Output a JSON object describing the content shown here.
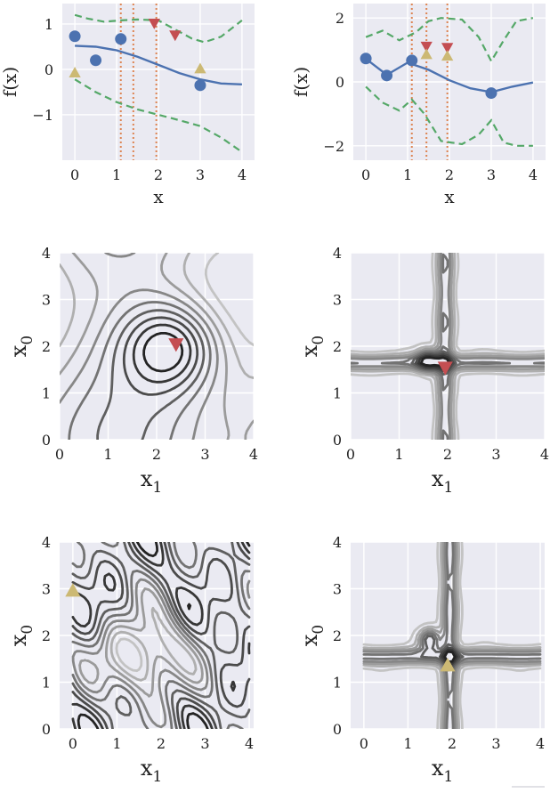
{
  "colors": {
    "panel_bg": "#eaeaf2",
    "grid": "#ffffff",
    "mean_line": "#4c72b0",
    "observed": "#4c72b0",
    "bound": "#55a868",
    "proposal_red": "#c44e52",
    "proposal_gold": "#ccb974",
    "vline": "#dd8452"
  },
  "chart_data": [
    {
      "type": "line",
      "xlabel": "x",
      "ylabel": "f(x)",
      "xlim": [
        -0.3,
        4.3
      ],
      "ylim": [
        -2.0,
        1.45
      ],
      "xticks": [
        "0",
        "1",
        "2",
        "3",
        "4"
      ],
      "yticks": [
        "1",
        "0",
        "−1"
      ],
      "ytick_values": [
        1,
        0,
        -1
      ],
      "grid": true,
      "series": [
        {
          "role": "mean",
          "x": [
            0,
            0.5,
            1,
            1.5,
            2,
            2.5,
            3,
            3.5,
            4
          ],
          "y": [
            0.52,
            0.5,
            0.42,
            0.28,
            0.1,
            -0.08,
            -0.22,
            -0.31,
            -0.33
          ]
        },
        {
          "role": "upper-bound",
          "x": [
            0,
            0.3,
            0.7,
            1.1,
            1.5,
            2,
            2.4,
            2.8,
            3.1,
            3.5,
            4
          ],
          "y": [
            1.2,
            1.12,
            1.05,
            1.08,
            1.1,
            1.08,
            0.88,
            0.68,
            0.6,
            0.72,
            1.08
          ]
        },
        {
          "role": "lower-bound",
          "x": [
            0,
            0.5,
            1,
            1.5,
            2,
            2.5,
            3,
            3.5,
            4
          ],
          "y": [
            -0.22,
            -0.5,
            -0.72,
            -0.88,
            -1.0,
            -1.12,
            -1.25,
            -1.5,
            -1.82
          ]
        },
        {
          "role": "observations",
          "x": [
            0,
            0.5,
            1.1,
            3.0
          ],
          "y": [
            0.73,
            0.2,
            0.67,
            -0.35
          ]
        },
        {
          "role": "proposal-red",
          "x": [
            1.9,
            2.4
          ],
          "y": [
            1.02,
            0.76
          ]
        },
        {
          "role": "proposal-gold",
          "x": [
            0.0,
            3.0
          ],
          "y": [
            -0.08,
            0.01
          ]
        }
      ],
      "vlines": [
        1.1,
        1.4,
        1.95
      ]
    },
    {
      "type": "line",
      "xlabel": "x",
      "ylabel": "f(x)",
      "xlim": [
        -0.3,
        4.3
      ],
      "ylim": [
        -2.45,
        2.45
      ],
      "xticks": [
        "0",
        "1",
        "2",
        "3",
        "4"
      ],
      "yticks": [
        "2",
        "0",
        "−2"
      ],
      "ytick_values": [
        2,
        0,
        -2
      ],
      "grid": true,
      "series": [
        {
          "role": "mean",
          "x": [
            0,
            0.5,
            1,
            1.5,
            2,
            2.5,
            3,
            3.5,
            4
          ],
          "y": [
            0.72,
            0.22,
            0.6,
            0.38,
            0.05,
            -0.2,
            -0.32,
            -0.15,
            -0.02
          ]
        },
        {
          "role": "upper-bound",
          "x": [
            0,
            0.4,
            0.8,
            1.2,
            1.5,
            1.8,
            2.3,
            2.7,
            3.0,
            3.3,
            3.6,
            4
          ],
          "y": [
            1.4,
            1.6,
            1.3,
            1.55,
            1.9,
            2.0,
            1.95,
            1.4,
            0.65,
            1.3,
            1.9,
            2.0
          ]
        },
        {
          "role": "lower-bound",
          "x": [
            0,
            0.4,
            0.8,
            1.1,
            1.4,
            1.8,
            2.3,
            2.7,
            3.0,
            3.3,
            3.6,
            4
          ],
          "y": [
            -0.15,
            -0.65,
            -0.9,
            -0.55,
            -1.0,
            -1.85,
            -1.95,
            -1.65,
            -1.2,
            -1.9,
            -2.0,
            -2.0
          ]
        },
        {
          "role": "observations",
          "x": [
            0,
            0.5,
            1.1,
            3.0
          ],
          "y": [
            0.73,
            0.2,
            0.67,
            -0.35
          ]
        },
        {
          "role": "proposal-red",
          "x": [
            1.45,
            1.95
          ],
          "y": [
            1.12,
            1.08
          ]
        },
        {
          "role": "proposal-gold",
          "x": [
            1.45,
            1.95
          ],
          "y": [
            0.85,
            0.8
          ]
        }
      ],
      "vlines": [
        1.1,
        1.45,
        1.95
      ]
    },
    {
      "type": "heatmap",
      "variant": "contour",
      "xlabel": "x",
      "xlabel_sub": "1",
      "ylabel": "x",
      "ylabel_sub": "0",
      "xlim": [
        0,
        4
      ],
      "ylim": [
        0,
        4
      ],
      "xticks": [
        "0",
        "1",
        "2",
        "3",
        "4"
      ],
      "yticks": [
        "0",
        "1",
        "2",
        "3",
        "4"
      ],
      "surface": {
        "kind": "sum",
        "peaks": [
          {
            "x": 2.3,
            "y": 2.0,
            "w": 1.05,
            "h": 1.0
          }
        ]
      },
      "marker": {
        "kind": "red",
        "x": 2.4,
        "y": 2.05
      }
    },
    {
      "type": "heatmap",
      "variant": "contour",
      "xlabel": "x",
      "xlabel_sub": "1",
      "ylabel": "x",
      "ylabel_sub": "0",
      "xlim": [
        0,
        4
      ],
      "ylim": [
        0,
        4
      ],
      "xticks": [
        "0",
        "1",
        "2",
        "3",
        "4"
      ],
      "yticks": [
        "0",
        "1",
        "2",
        "3",
        "4"
      ],
      "surface": {
        "kind": "cross",
        "cx": 1.95,
        "cy": 1.65,
        "peak": {
          "x": 1.6,
          "y": 1.7
        }
      },
      "marker": {
        "kind": "red",
        "x": 1.95,
        "y": 1.55
      }
    },
    {
      "type": "heatmap",
      "variant": "contour",
      "xlabel": "x",
      "xlabel_sub": "1",
      "ylabel": "x",
      "ylabel_sub": "0",
      "xlim": [
        -0.3,
        4.1
      ],
      "ylim": [
        0,
        4
      ],
      "xticks": [
        "0",
        "1",
        "2",
        "3",
        "4"
      ],
      "yticks": [
        "0",
        "1",
        "2",
        "3",
        "4"
      ],
      "surface": {
        "kind": "wavy",
        "peaks": [
          {
            "x": 1.6,
            "y": 1.55,
            "w": 0.9,
            "h": 0.8
          }
        ]
      },
      "marker": {
        "kind": "gold",
        "x": 0.0,
        "y": 2.95
      }
    },
    {
      "type": "heatmap",
      "variant": "contour",
      "xlabel": "x",
      "xlabel_sub": "1",
      "ylabel": "x",
      "ylabel_sub": "0",
      "xlim": [
        -0.3,
        4.1
      ],
      "ylim": [
        0,
        4
      ],
      "xticks": [
        "0",
        "1",
        "2",
        "3",
        "4"
      ],
      "yticks": [
        "0",
        "1",
        "2",
        "3",
        "4"
      ],
      "surface": {
        "kind": "cross",
        "cx": 1.95,
        "cy": 1.55,
        "peak": {
          "x": 1.5,
          "y": 1.9
        }
      },
      "marker": {
        "kind": "gold",
        "x": 1.9,
        "y": 1.35
      }
    }
  ]
}
